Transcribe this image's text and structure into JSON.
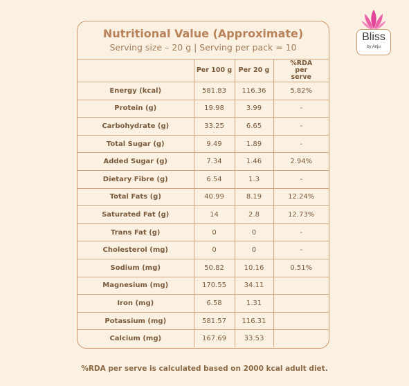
{
  "title": "Nutritional Value (Approximate)",
  "subtitle": "Serving size – 20 g | Serving per pack = 10",
  "brand": {
    "name": "Bliss",
    "tagline": "by Anju",
    "colors": {
      "lotus": "#e0459a",
      "text": "#3a3a3a"
    }
  },
  "colors": {
    "background": "#fbf1e3",
    "border": "#c9956a",
    "title": "#b8825a",
    "text": "#7a5a3a"
  },
  "table": {
    "headers": [
      "",
      "Per 100 g",
      "Per 20 g",
      "%RDA per serve"
    ],
    "rows": [
      [
        "Energy (kcal)",
        "581.83",
        "116.36",
        "5.82%"
      ],
      [
        "Protein (g)",
        "19.98",
        "3.99",
        "-"
      ],
      [
        "Carbohydrate (g)",
        "33.25",
        "6.65",
        "-"
      ],
      [
        "Total Sugar (g)",
        "9.49",
        "1.89",
        "-"
      ],
      [
        "Added Sugar (g)",
        "7.34",
        "1.46",
        "2.94%"
      ],
      [
        "Dietary Fibre (g)",
        "6.54",
        "1.3",
        "-"
      ],
      [
        "Total Fats (g)",
        "40.99",
        "8.19",
        "12.24%"
      ],
      [
        "Saturated Fat (g)",
        "14",
        "2.8",
        "12.73%"
      ],
      [
        "Trans Fat (g)",
        "0",
        "0",
        "-"
      ],
      [
        "Cholesterol (mg)",
        "0",
        "0",
        "-"
      ],
      [
        "Sodium (mg)",
        "50.82",
        "10.16",
        "0.51%"
      ],
      [
        "Magnesium (mg)",
        "170.55",
        "34.11",
        ""
      ],
      [
        "Iron (mg)",
        "6.58",
        "1.31",
        ""
      ],
      [
        "Potassium (mg)",
        "581.57",
        "116.31",
        ""
      ],
      [
        "Calcium (mg)",
        "167.69",
        "33.53",
        ""
      ]
    ]
  },
  "footnote": "%RDA per serve is calculated based on 2000 kcal adult diet."
}
